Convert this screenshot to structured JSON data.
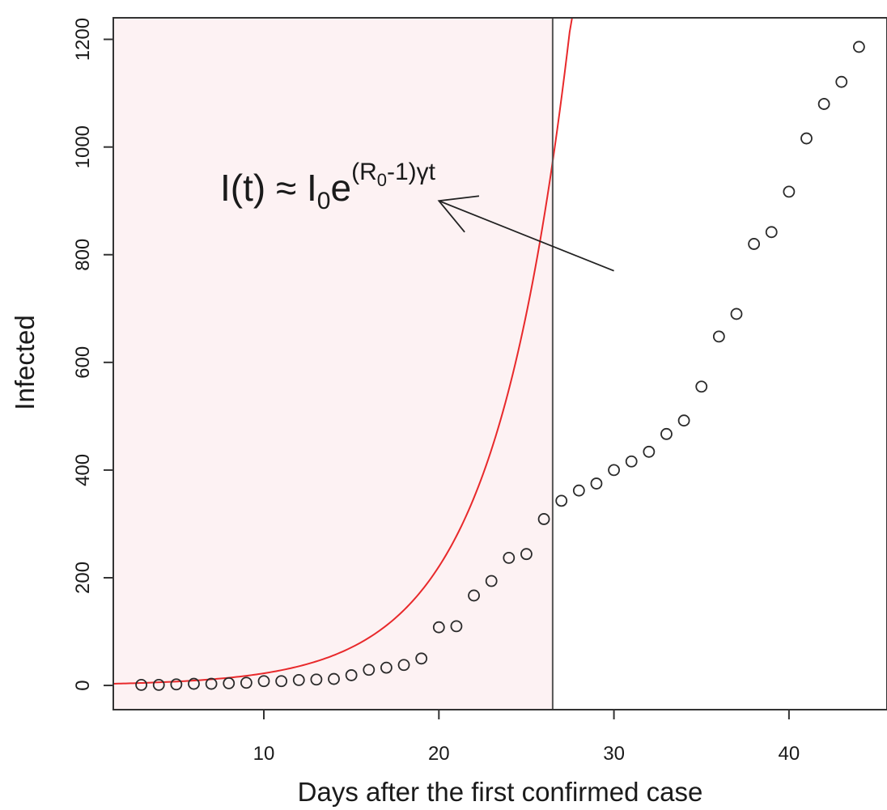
{
  "chart_data": {
    "type": "scatter",
    "xlabel": "Days after the first confirmed case",
    "ylabel": "Infected",
    "xlim": [
      1.4,
      45.6
    ],
    "ylim": [
      -45,
      1240
    ],
    "xticks": [
      10,
      20,
      30,
      40
    ],
    "yticks": [
      0,
      200,
      400,
      600,
      800,
      1000,
      1200
    ],
    "xtick_labels": [
      "10",
      "20",
      "30",
      "40"
    ],
    "ytick_labels": [
      "0",
      "200",
      "400",
      "600",
      "800",
      "1000",
      "1200"
    ],
    "grid": false,
    "colors": {
      "fit_curve": "#e8292b",
      "points": "#2a2a2a",
      "shade": "#fdf2f3",
      "vline": "#555555"
    },
    "shaded_region": {
      "x": [
        1.4,
        26.5
      ]
    },
    "vertical_line_x": 26.5,
    "series": [
      {
        "marker": "open-circle",
        "x": [
          3,
          4,
          5,
          6,
          7,
          8,
          9,
          10,
          11,
          12,
          13,
          14,
          15,
          16,
          17,
          18,
          19,
          20,
          21,
          22,
          23,
          24,
          25,
          26,
          27,
          28,
          29,
          30,
          31,
          32,
          33,
          34,
          35,
          36,
          37,
          38,
          39,
          40,
          41,
          42,
          43,
          44
        ],
        "y": [
          1,
          1,
          2,
          3,
          3,
          4,
          5,
          8,
          8,
          10,
          11,
          12,
          19,
          29,
          33,
          38,
          50,
          108,
          110,
          167,
          194,
          237,
          244,
          309,
          343,
          362,
          375,
          400,
          416,
          434,
          467,
          492,
          555,
          648,
          690,
          820,
          842,
          917,
          1016,
          1080,
          1121,
          1186
        ]
      },
      {
        "type": "line",
        "formula": "I(t) = I0 * exp(r * t)",
        "params": {
          "I0": 2.3,
          "r": 0.2282
        },
        "x_range": [
          1.4,
          32.4
        ]
      }
    ],
    "annotation": {
      "main": "I(t) ≈ I",
      "sub": "0",
      "e": "e",
      "sup_open": "(R",
      "sup_sub": "0",
      "sup_close": "-1)γt",
      "arrow": {
        "from": [
          30,
          770
        ],
        "to": [
          20,
          900
        ]
      }
    }
  }
}
